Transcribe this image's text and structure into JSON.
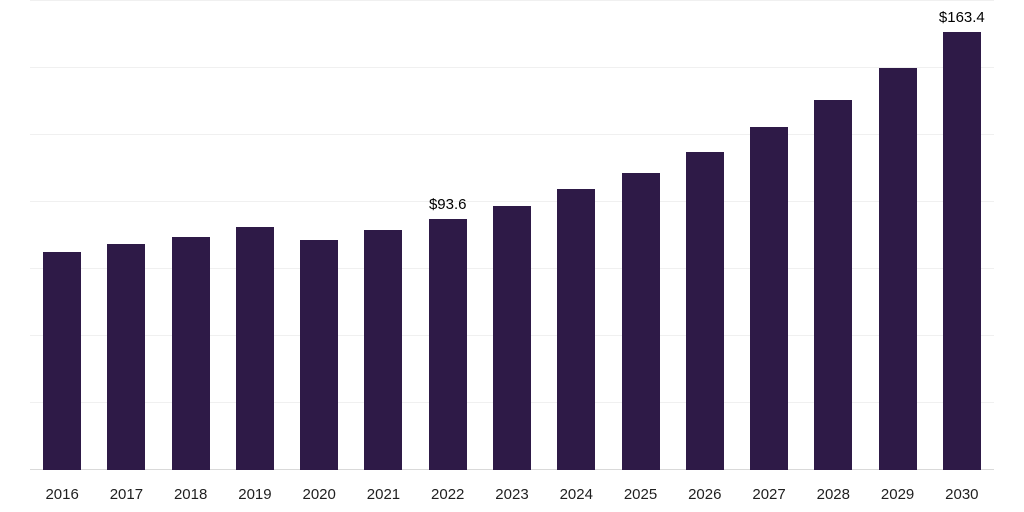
{
  "chart_data": {
    "type": "bar",
    "title": "",
    "xlabel": "",
    "ylabel": "",
    "categories": [
      "2016",
      "2017",
      "2018",
      "2019",
      "2020",
      "2021",
      "2022",
      "2023",
      "2024",
      "2025",
      "2026",
      "2027",
      "2028",
      "2029",
      "2030"
    ],
    "values": [
      81.3,
      84.5,
      87.0,
      90.5,
      86.0,
      89.5,
      93.6,
      98.5,
      105.0,
      111.0,
      118.5,
      128.0,
      138.0,
      150.0,
      163.4
    ],
    "data_labels": [
      "",
      "",
      "",
      "",
      "",
      "",
      "$93.6",
      "",
      "",
      "",
      "",
      "",
      "",
      "",
      "$163.4"
    ],
    "ylim": [
      0,
      175
    ],
    "gridline_step": 25,
    "grid": true,
    "legend": false,
    "bar_color": "#2e1a47",
    "gridline_color": "#f0f0f0",
    "baseline_color": "#d9d9d9",
    "tick_label_color": "#1f1f1f",
    "value_label_color": "#000000"
  }
}
